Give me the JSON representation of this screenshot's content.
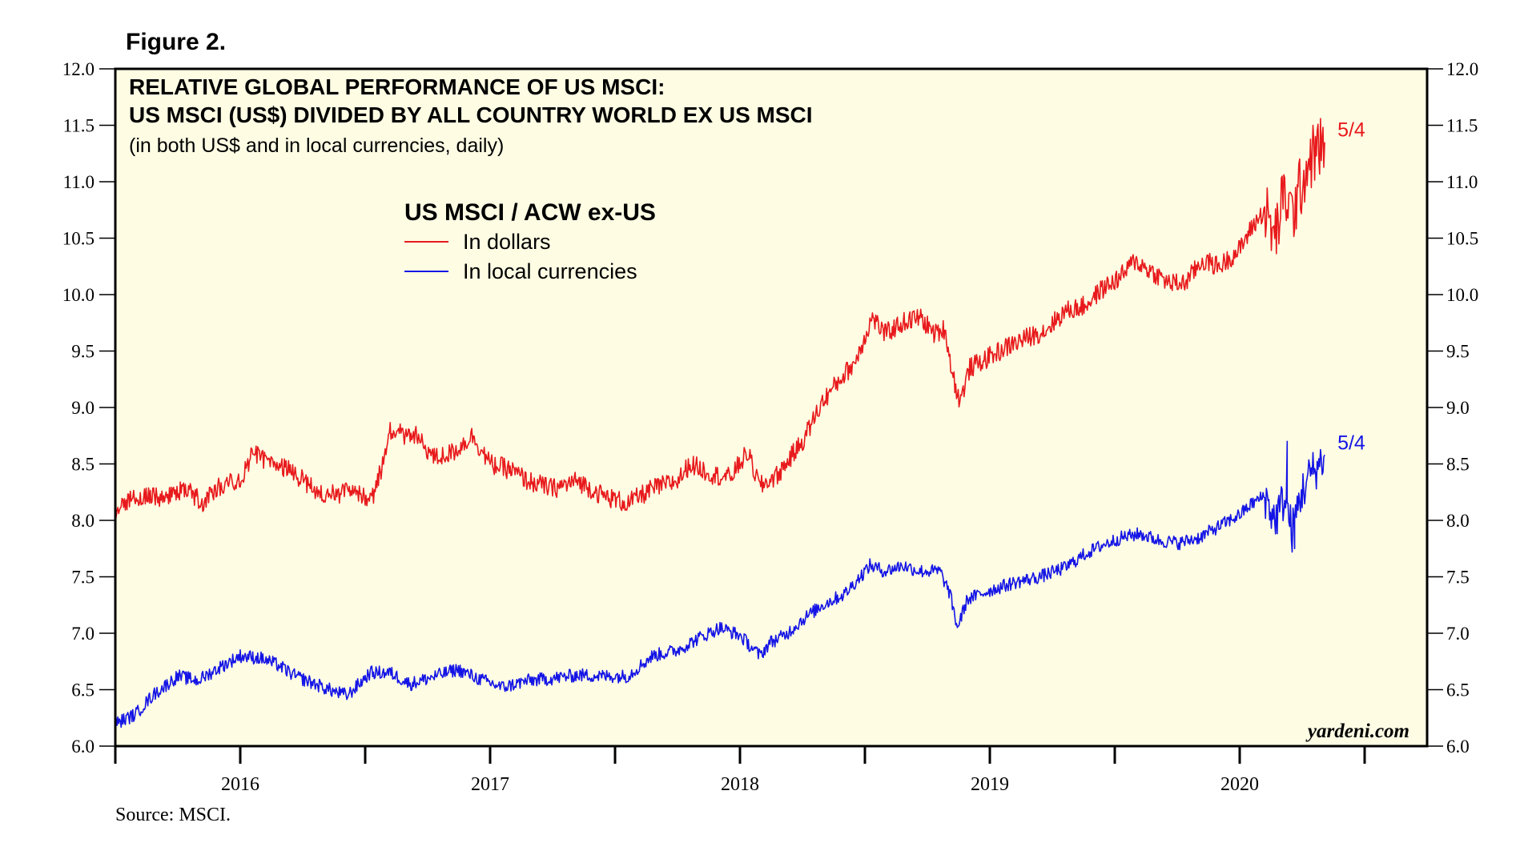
{
  "figure_label": "Figure 2.",
  "source": "Source: MSCI.",
  "watermark": "yardeni.com",
  "colors": {
    "dollars": "#e8191c",
    "local": "#1414e6",
    "plot_bg": "#fefde4",
    "frame": "#000000"
  },
  "chart_data": {
    "type": "line",
    "title": "RELATIVE GLOBAL PERFORMANCE OF US MSCI:",
    "title_line2": "US MSCI (US$) DIVIDED BY ALL COUNTRY WORLD EX US MSCI",
    "subtitle": "(in both US$ and in local currencies, daily)",
    "legend_title": "US MSCI / ACW ex-US",
    "legend_placement": "upper-center-left",
    "xlim": [
      2015.5,
      2020.75
    ],
    "ylim": [
      6.0,
      12.0
    ],
    "y_ticks": [
      "6.0",
      "6.5",
      "7.0",
      "7.5",
      "8.0",
      "8.5",
      "9.0",
      "9.5",
      "10.0",
      "10.5",
      "11.0",
      "11.5",
      "12.0"
    ],
    "x_ticks": [
      2015.5,
      2016,
      2016.5,
      2017,
      2017.5,
      2018,
      2018.5,
      2019,
      2019.5,
      2020,
      2020.5
    ],
    "x_labels": [
      {
        "label": "2016",
        "x": 2016.0
      },
      {
        "label": "2017",
        "x": 2017.0
      },
      {
        "label": "2018",
        "x": 2018.0
      },
      {
        "label": "2019",
        "x": 2019.0
      },
      {
        "label": "2020",
        "x": 2020.0
      }
    ],
    "series": [
      {
        "name": "In dollars",
        "end_label": "5/4",
        "noise": 0.09,
        "points": [
          [
            2015.5,
            8.1
          ],
          [
            2015.6,
            8.22
          ],
          [
            2015.7,
            8.2
          ],
          [
            2015.78,
            8.28
          ],
          [
            2015.85,
            8.15
          ],
          [
            2015.92,
            8.3
          ],
          [
            2016.0,
            8.35
          ],
          [
            2016.05,
            8.6
          ],
          [
            2016.12,
            8.5
          ],
          [
            2016.2,
            8.45
          ],
          [
            2016.28,
            8.3
          ],
          [
            2016.35,
            8.22
          ],
          [
            2016.45,
            8.25
          ],
          [
            2016.53,
            8.2
          ],
          [
            2016.57,
            8.5
          ],
          [
            2016.6,
            8.78
          ],
          [
            2016.7,
            8.75
          ],
          [
            2016.78,
            8.55
          ],
          [
            2016.85,
            8.6
          ],
          [
            2016.93,
            8.75
          ],
          [
            2017.0,
            8.5
          ],
          [
            2017.08,
            8.45
          ],
          [
            2017.15,
            8.35
          ],
          [
            2017.25,
            8.28
          ],
          [
            2017.35,
            8.35
          ],
          [
            2017.45,
            8.22
          ],
          [
            2017.55,
            8.15
          ],
          [
            2017.65,
            8.28
          ],
          [
            2017.75,
            8.35
          ],
          [
            2017.8,
            8.5
          ],
          [
            2017.9,
            8.4
          ],
          [
            2017.96,
            8.38
          ],
          [
            2018.03,
            8.6
          ],
          [
            2018.08,
            8.3
          ],
          [
            2018.15,
            8.4
          ],
          [
            2018.25,
            8.7
          ],
          [
            2018.33,
            9.05
          ],
          [
            2018.4,
            9.25
          ],
          [
            2018.46,
            9.4
          ],
          [
            2018.53,
            9.8
          ],
          [
            2018.58,
            9.65
          ],
          [
            2018.65,
            9.75
          ],
          [
            2018.72,
            9.8
          ],
          [
            2018.78,
            9.65
          ],
          [
            2018.82,
            9.7
          ],
          [
            2018.85,
            9.3
          ],
          [
            2018.88,
            9.05
          ],
          [
            2018.92,
            9.35
          ],
          [
            2019.0,
            9.45
          ],
          [
            2019.08,
            9.55
          ],
          [
            2019.15,
            9.62
          ],
          [
            2019.22,
            9.68
          ],
          [
            2019.3,
            9.85
          ],
          [
            2019.38,
            9.9
          ],
          [
            2019.45,
            10.05
          ],
          [
            2019.52,
            10.15
          ],
          [
            2019.58,
            10.3
          ],
          [
            2019.65,
            10.2
          ],
          [
            2019.72,
            10.1
          ],
          [
            2019.78,
            10.1
          ],
          [
            2019.85,
            10.3
          ],
          [
            2019.92,
            10.25
          ],
          [
            2020.0,
            10.4
          ],
          [
            2020.05,
            10.6
          ],
          [
            2020.1,
            10.75
          ],
          [
            2020.14,
            10.5
          ],
          [
            2020.18,
            10.9
          ],
          [
            2020.21,
            10.7
          ],
          [
            2020.25,
            11.0
          ],
          [
            2020.28,
            11.2
          ],
          [
            2020.32,
            11.3
          ],
          [
            2020.34,
            11.35
          ]
        ]
      },
      {
        "name": "In local currencies",
        "end_label": "5/4",
        "noise": 0.06,
        "points": [
          [
            2015.5,
            6.2
          ],
          [
            2015.58,
            6.28
          ],
          [
            2015.65,
            6.45
          ],
          [
            2015.75,
            6.62
          ],
          [
            2015.83,
            6.58
          ],
          [
            2015.92,
            6.7
          ],
          [
            2016.0,
            6.8
          ],
          [
            2016.08,
            6.78
          ],
          [
            2016.15,
            6.72
          ],
          [
            2016.22,
            6.62
          ],
          [
            2016.3,
            6.55
          ],
          [
            2016.38,
            6.48
          ],
          [
            2016.43,
            6.45
          ],
          [
            2016.52,
            6.65
          ],
          [
            2016.6,
            6.65
          ],
          [
            2016.68,
            6.55
          ],
          [
            2016.78,
            6.62
          ],
          [
            2016.87,
            6.68
          ],
          [
            2016.95,
            6.6
          ],
          [
            2017.05,
            6.52
          ],
          [
            2017.15,
            6.58
          ],
          [
            2017.25,
            6.6
          ],
          [
            2017.35,
            6.63
          ],
          [
            2017.45,
            6.62
          ],
          [
            2017.55,
            6.62
          ],
          [
            2017.65,
            6.8
          ],
          [
            2017.75,
            6.85
          ],
          [
            2017.83,
            6.95
          ],
          [
            2017.92,
            7.05
          ],
          [
            2018.0,
            6.98
          ],
          [
            2018.08,
            6.8
          ],
          [
            2018.12,
            6.92
          ],
          [
            2018.18,
            6.98
          ],
          [
            2018.25,
            7.12
          ],
          [
            2018.33,
            7.25
          ],
          [
            2018.42,
            7.35
          ],
          [
            2018.52,
            7.6
          ],
          [
            2018.58,
            7.55
          ],
          [
            2018.65,
            7.6
          ],
          [
            2018.72,
            7.55
          ],
          [
            2018.8,
            7.55
          ],
          [
            2018.84,
            7.35
          ],
          [
            2018.87,
            7.05
          ],
          [
            2018.91,
            7.3
          ],
          [
            2019.0,
            7.38
          ],
          [
            2019.1,
            7.45
          ],
          [
            2019.2,
            7.5
          ],
          [
            2019.3,
            7.58
          ],
          [
            2019.38,
            7.7
          ],
          [
            2019.45,
            7.78
          ],
          [
            2019.53,
            7.85
          ],
          [
            2019.6,
            7.88
          ],
          [
            2019.68,
            7.82
          ],
          [
            2019.76,
            7.8
          ],
          [
            2019.84,
            7.85
          ],
          [
            2019.92,
            7.95
          ],
          [
            2020.0,
            8.05
          ],
          [
            2020.05,
            8.15
          ],
          [
            2020.1,
            8.22
          ],
          [
            2020.14,
            8.0
          ],
          [
            2020.18,
            8.2
          ],
          [
            2020.21,
            7.9
          ],
          [
            2020.24,
            8.2
          ],
          [
            2020.28,
            8.4
          ],
          [
            2020.32,
            8.5
          ],
          [
            2020.34,
            8.58
          ]
        ],
        "spikes": [
          [
            2020.19,
            8.7
          ],
          [
            2020.22,
            7.75
          ]
        ]
      }
    ]
  }
}
